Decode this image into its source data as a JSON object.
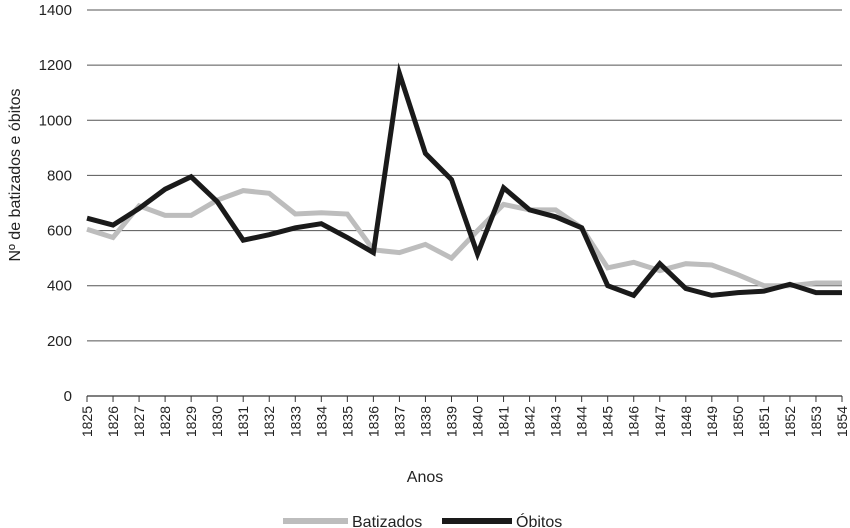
{
  "chart_data": {
    "type": "line",
    "title": "",
    "xlabel": "Anos",
    "ylabel": "Nº de batizados e óbitos",
    "ylim": [
      0,
      1400
    ],
    "yticks": [
      0,
      200,
      400,
      600,
      800,
      1000,
      1200,
      1400
    ],
    "grid": "horizontal",
    "legend": "bottom-center",
    "categories": [
      "1825",
      "1826",
      "1827",
      "1828",
      "1829",
      "1830",
      "1831",
      "1832",
      "1833",
      "1834",
      "1835",
      "1836",
      "1837",
      "1838",
      "1839",
      "1840",
      "1841",
      "1842",
      "1843",
      "1844",
      "1845",
      "1846",
      "1847",
      "1848",
      "1849",
      "1850",
      "1851",
      "1852",
      "1853",
      "1854"
    ],
    "series": [
      {
        "name": "Batizados",
        "color": "#bdbdbd",
        "values": [
          605,
          575,
          690,
          655,
          655,
          710,
          745,
          735,
          660,
          665,
          660,
          530,
          520,
          550,
          500,
          600,
          695,
          675,
          675,
          610,
          465,
          485,
          455,
          480,
          475,
          440,
          400,
          400,
          410,
          410
        ]
      },
      {
        "name": "Óbitos",
        "color": "#1a1a1a",
        "values": [
          645,
          620,
          680,
          750,
          795,
          705,
          565,
          585,
          610,
          625,
          575,
          520,
          1170,
          880,
          785,
          515,
          755,
          675,
          650,
          610,
          400,
          365,
          480,
          390,
          365,
          375,
          380,
          405,
          375,
          375
        ]
      }
    ]
  }
}
